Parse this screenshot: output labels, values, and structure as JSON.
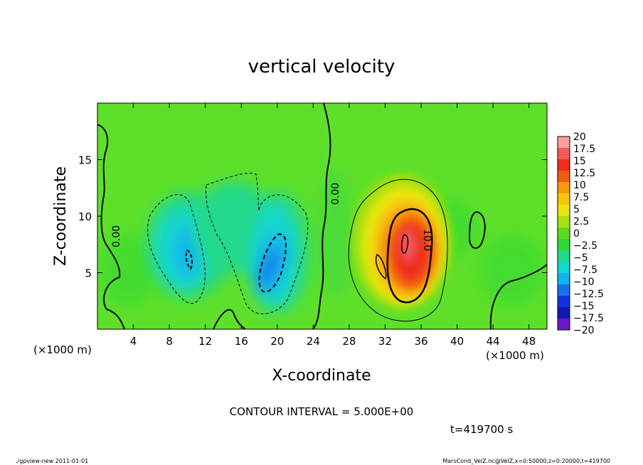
{
  "chart_data": {
    "type": "heatmap",
    "title": "vertical velocity",
    "xlabel": "X-coordinate",
    "ylabel": "Z-coordinate",
    "x_unit": "(×1000 m)",
    "z_unit": "(×1000 m)",
    "xlim": [
      0,
      50
    ],
    "zlim": [
      0,
      20
    ],
    "x_ticks": [
      4,
      8,
      12,
      16,
      20,
      24,
      28,
      32,
      36,
      40,
      44,
      48
    ],
    "z_ticks": [
      5,
      10,
      15
    ],
    "contour_interval_text": "CONTOUR INTERVAL = 5.000E+00",
    "time_text": "t=419700 s",
    "contour_labels": [
      "0.00",
      "0.00",
      "10.0"
    ],
    "colorbar": {
      "levels": [
        "20",
        "17.5",
        "15",
        "12.5",
        "10",
        "7.5",
        "5",
        "2.5",
        "0",
        "-2.5",
        "-5",
        "-7.5",
        "-10",
        "-12.5",
        "-15",
        "-17.5",
        "-20"
      ],
      "colors": [
        "#f7a0a0",
        "#f25a5a",
        "#ef2e1e",
        "#f25a10",
        "#f79a08",
        "#f7c808",
        "#e8e810",
        "#a8e010",
        "#60d820",
        "#2ed832",
        "#22d88a",
        "#14d6d0",
        "#12b4f0",
        "#1272f0",
        "#1032e0",
        "#1018b0",
        "#6a18c8"
      ]
    },
    "features": [
      {
        "kind": "updraft",
        "x": 34.5,
        "z": 7.5,
        "peak": 17.5
      },
      {
        "kind": "downdraft",
        "x": 20,
        "z": 6,
        "peak": -12.5
      },
      {
        "kind": "downdraft",
        "x": 10,
        "z": 7,
        "peak": -7.5
      }
    ]
  },
  "footer": {
    "left": "./gpview-new  2011-01-01",
    "right": "MarsCond_VelZ.nc@VelZ,x=0:50000,z=0:20000,t=419700"
  }
}
